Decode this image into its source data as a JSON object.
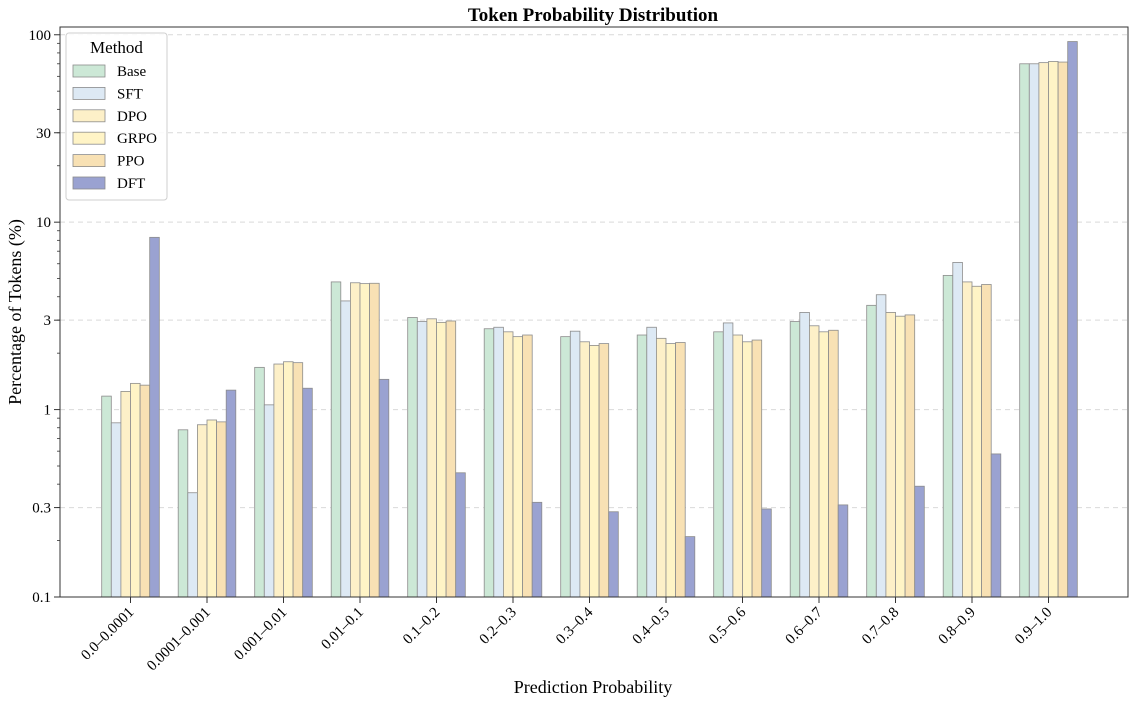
{
  "chart_data": {
    "type": "bar",
    "title": "Token Probability Distribution",
    "xlabel": "Prediction Probability",
    "ylabel": "Percentage  of  Tokens (%)",
    "y_scale": "log",
    "ylim": [
      0.1,
      110
    ],
    "y_ticks": [
      0.1,
      0.3,
      1,
      3,
      10,
      30,
      100
    ],
    "y_tick_labels": [
      "0.1",
      "0.3",
      "1",
      "3",
      "10",
      "30",
      "100"
    ],
    "grid": "horizontal-dashed",
    "legend": {
      "title": "Method",
      "placement": "top-left"
    },
    "categories": [
      "0.0–0.0001",
      "0.0001–0.001",
      "0.001–0.01",
      "0.01–0.1",
      "0.1–0.2",
      "0.2–0.3",
      "0.3–0.4",
      "0.4–0.5",
      "0.5–0.6",
      "0.6–0.7",
      "0.7–0.8",
      "0.8–0.9",
      "0.9–1.0"
    ],
    "series": [
      {
        "name": "Base",
        "color": "#cce8d6",
        "values": [
          1.18,
          0.78,
          1.68,
          4.8,
          3.1,
          2.7,
          2.45,
          2.5,
          2.6,
          2.95,
          3.6,
          5.2,
          70
        ]
      },
      {
        "name": "SFT",
        "color": "#dde9f4",
        "values": [
          0.85,
          0.36,
          1.06,
          3.8,
          2.95,
          2.75,
          2.62,
          2.75,
          2.9,
          3.3,
          4.1,
          6.1,
          70
        ]
      },
      {
        "name": "DPO",
        "color": "#fdf0c8",
        "values": [
          1.25,
          0.83,
          1.75,
          4.75,
          3.05,
          2.6,
          2.3,
          2.4,
          2.5,
          2.8,
          3.3,
          4.8,
          71
        ]
      },
      {
        "name": "GRPO",
        "color": "#fff4c6",
        "values": [
          1.38,
          0.88,
          1.8,
          4.7,
          2.92,
          2.45,
          2.2,
          2.25,
          2.3,
          2.6,
          3.15,
          4.55,
          72
        ]
      },
      {
        "name": "PPO",
        "color": "#f8e1b4",
        "values": [
          1.35,
          0.86,
          1.78,
          4.72,
          2.97,
          2.5,
          2.25,
          2.28,
          2.35,
          2.65,
          3.2,
          4.65,
          71.5
        ]
      },
      {
        "name": "DFT",
        "color": "#9aa2d1",
        "values": [
          8.3,
          1.27,
          1.3,
          1.45,
          0.46,
          0.32,
          0.285,
          0.21,
          0.295,
          0.31,
          0.39,
          0.58,
          92
        ]
      }
    ]
  }
}
